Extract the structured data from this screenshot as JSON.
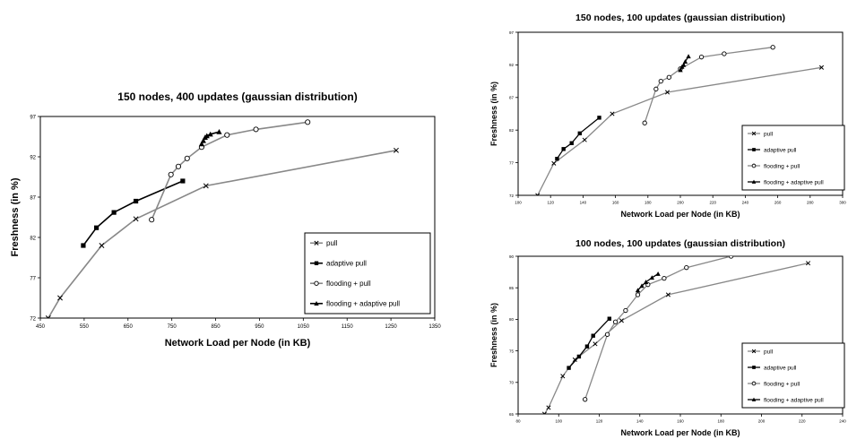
{
  "chart_data": [
    {
      "type": "line",
      "title": "150 nodes, 400 updates (gaussian distribution)",
      "xlabel": "Network Load per Node (in KB)",
      "ylabel": "Freshness (in %)",
      "xlim": [
        450,
        1350
      ],
      "ylim": [
        72,
        97
      ],
      "xticks": [
        "450",
        "550",
        "650",
        "750",
        "850",
        "950",
        "1050",
        "1150",
        "1250",
        "1350"
      ],
      "yticks": [
        "72",
        "77",
        "82",
        "87",
        "92",
        "97"
      ],
      "grid": false,
      "legend": "bottom-right",
      "series": [
        {
          "name": "pull",
          "marker": "x",
          "color": "#888888",
          "points": [
            [
              468,
              72
            ],
            [
              495,
              74.5
            ],
            [
              590,
              81
            ],
            [
              668,
              84.3
            ],
            [
              828,
              88.4
            ],
            [
              1262,
              92.8
            ]
          ]
        },
        {
          "name": "adaptive pull",
          "marker": "square",
          "color": "#000000",
          "points": [
            [
              548,
              81
            ],
            [
              578,
              83.2
            ],
            [
              618,
              85.1
            ],
            [
              668,
              86.5
            ],
            [
              775,
              89
            ]
          ]
        },
        {
          "name": "flooding + pull",
          "marker": "circle",
          "color": "#888888",
          "points": [
            [
              704,
              84.2
            ],
            [
              748,
              89.8
            ],
            [
              765,
              90.8
            ],
            [
              785,
              91.8
            ],
            [
              818,
              93.2
            ],
            [
              876,
              94.7
            ],
            [
              942,
              95.4
            ],
            [
              1060,
              96.3
            ]
          ]
        },
        {
          "name": "flooding + adaptive pull",
          "marker": "triangle",
          "color": "#000000",
          "points": [
            [
              818,
              93.6
            ],
            [
              822,
              94
            ],
            [
              826,
              94.4
            ],
            [
              830,
              94.6
            ],
            [
              838,
              94.8
            ],
            [
              858,
              95.1
            ]
          ]
        }
      ]
    },
    {
      "type": "line",
      "title": "150 nodes, 100 updates (gaussian distribution)",
      "xlabel": "Network Load per Node (in KB)",
      "ylabel": "Freshness (in %)",
      "xlim": [
        100,
        300
      ],
      "ylim": [
        72,
        97
      ],
      "xticks": [
        "100",
        "120",
        "140",
        "160",
        "180",
        "200",
        "220",
        "240",
        "260",
        "280",
        "300"
      ],
      "yticks": [
        "72",
        "77",
        "82",
        "87",
        "92",
        "97"
      ],
      "grid": false,
      "legend": "bottom-right",
      "series": [
        {
          "name": "pull",
          "marker": "x",
          "color": "#888888",
          "points": [
            [
              112,
              72
            ],
            [
              122,
              76.9
            ],
            [
              141,
              80.5
            ],
            [
              158,
              84.5
            ],
            [
              192,
              87.8
            ],
            [
              287,
              91.6
            ]
          ]
        },
        {
          "name": "adaptive pull",
          "marker": "square",
          "color": "#000000",
          "points": [
            [
              124,
              77.6
            ],
            [
              128,
              79.1
            ],
            [
              133,
              80
            ],
            [
              138,
              81.5
            ],
            [
              150,
              83.9
            ]
          ]
        },
        {
          "name": "flooding + pull",
          "marker": "circle",
          "color": "#888888",
          "points": [
            [
              178,
              83.1
            ],
            [
              185,
              88.3
            ],
            [
              188,
              89.5
            ],
            [
              193,
              90.1
            ],
            [
              200,
              91.4
            ],
            [
              213,
              93.2
            ],
            [
              227,
              93.7
            ],
            [
              257,
              94.7
            ]
          ]
        },
        {
          "name": "flooding + adaptive pull",
          "marker": "triangle",
          "color": "#000000",
          "points": [
            [
              200,
              91.2
            ],
            [
              201,
              91.7
            ],
            [
              202,
              92
            ],
            [
              203,
              92.5
            ],
            [
              205,
              93.3
            ]
          ]
        }
      ]
    },
    {
      "type": "line",
      "title": "100 nodes, 100 updates (gaussian distribution)",
      "xlabel": "Network Load per Node (in KB)",
      "ylabel": "Freshness (in %)",
      "xlim": [
        80,
        240
      ],
      "ylim": [
        65,
        90
      ],
      "xticks": [
        "80",
        "100",
        "120",
        "140",
        "160",
        "180",
        "200",
        "220",
        "240"
      ],
      "yticks": [
        "65",
        "70",
        "75",
        "80",
        "85",
        "90"
      ],
      "grid": false,
      "legend": "bottom-right",
      "series": [
        {
          "name": "pull",
          "marker": "x",
          "color": "#888888",
          "points": [
            [
              93,
              65
            ],
            [
              95,
              66
            ],
            [
              102,
              71
            ],
            [
              108,
              73.6
            ],
            [
              118,
              76.1
            ],
            [
              131,
              79.8
            ],
            [
              154,
              83.9
            ],
            [
              223,
              88.9
            ]
          ]
        },
        {
          "name": "adaptive pull",
          "marker": "square",
          "color": "#000000",
          "points": [
            [
              105,
              72.3
            ],
            [
              110,
              74.1
            ],
            [
              114,
              75.7
            ],
            [
              117,
              77.4
            ],
            [
              125,
              80.1
            ]
          ]
        },
        {
          "name": "flooding + pull",
          "marker": "circle",
          "color": "#888888",
          "points": [
            [
              113,
              67.3
            ],
            [
              124,
              77.6
            ],
            [
              128,
              79.6
            ],
            [
              133,
              81.4
            ],
            [
              139,
              83.9
            ],
            [
              144,
              85.5
            ],
            [
              152,
              86.5
            ],
            [
              163,
              88.2
            ],
            [
              185,
              90
            ]
          ]
        },
        {
          "name": "flooding + adaptive pull",
          "marker": "triangle",
          "color": "#000000",
          "points": [
            [
              139,
              84.6
            ],
            [
              141,
              85.3
            ],
            [
              143,
              85.9
            ],
            [
              146,
              86.6
            ],
            [
              149,
              87.2
            ]
          ]
        }
      ]
    }
  ]
}
